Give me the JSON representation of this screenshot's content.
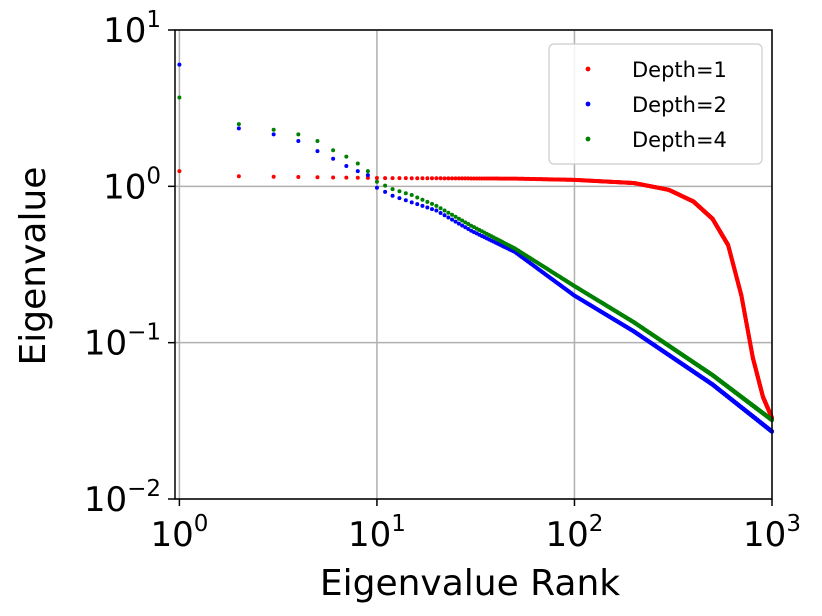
{
  "chart_data": {
    "type": "scatter",
    "title": "",
    "xlabel": "Eigenvalue Rank",
    "ylabel": "Eigenvalue",
    "xscale": "log",
    "yscale": "log",
    "xlim": [
      0.95,
      1000
    ],
    "ylim": [
      0.01,
      10
    ],
    "grid": true,
    "legend_position": "top-right",
    "x_ticks": [
      {
        "base": "10",
        "exp": "0",
        "value": 1
      },
      {
        "base": "10",
        "exp": "1",
        "value": 10
      },
      {
        "base": "10",
        "exp": "2",
        "value": 100
      },
      {
        "base": "10",
        "exp": "3",
        "value": 1000
      }
    ],
    "y_ticks": [
      {
        "base": "10",
        "exp": "−2",
        "value": 0.01
      },
      {
        "base": "10",
        "exp": "−1",
        "value": 0.1
      },
      {
        "base": "10",
        "exp": "0",
        "value": 1
      },
      {
        "base": "10",
        "exp": "1",
        "value": 10
      }
    ],
    "rank_max": 1000,
    "series": [
      {
        "name": "Depth=1",
        "color": "#ff0000",
        "anchors": [
          [
            1,
            1.25
          ],
          [
            2,
            1.16
          ],
          [
            10,
            1.13
          ],
          [
            50,
            1.12
          ],
          [
            100,
            1.1
          ],
          [
            200,
            1.05
          ],
          [
            300,
            0.95
          ],
          [
            400,
            0.8
          ],
          [
            500,
            0.62
          ],
          [
            600,
            0.42
          ],
          [
            700,
            0.2
          ],
          [
            800,
            0.08
          ],
          [
            900,
            0.045
          ],
          [
            1000,
            0.033
          ]
        ]
      },
      {
        "name": "Depth=2",
        "color": "#0000ff",
        "anchors": [
          [
            1,
            6.0
          ],
          [
            2,
            2.35
          ],
          [
            3,
            2.15
          ],
          [
            4,
            1.95
          ],
          [
            5,
            1.68
          ],
          [
            6,
            1.5
          ],
          [
            7,
            1.35
          ],
          [
            8,
            1.25
          ],
          [
            9,
            1.18
          ],
          [
            10,
            0.98
          ],
          [
            12,
            0.87
          ],
          [
            15,
            0.79
          ],
          [
            20,
            0.7
          ],
          [
            30,
            0.52
          ],
          [
            50,
            0.38
          ],
          [
            100,
            0.2
          ],
          [
            200,
            0.118
          ],
          [
            500,
            0.054
          ],
          [
            1000,
            0.027
          ]
        ]
      },
      {
        "name": "Depth=4",
        "color": "#008000",
        "anchors": [
          [
            1,
            3.7
          ],
          [
            2,
            2.5
          ],
          [
            3,
            2.3
          ],
          [
            4,
            2.15
          ],
          [
            5,
            1.95
          ],
          [
            6,
            1.7
          ],
          [
            7,
            1.55
          ],
          [
            8,
            1.4
          ],
          [
            9,
            1.25
          ],
          [
            10,
            1.07
          ],
          [
            12,
            0.96
          ],
          [
            15,
            0.88
          ],
          [
            20,
            0.75
          ],
          [
            30,
            0.56
          ],
          [
            50,
            0.4
          ],
          [
            100,
            0.23
          ],
          [
            200,
            0.135
          ],
          [
            500,
            0.062
          ],
          [
            1000,
            0.032
          ]
        ]
      }
    ]
  }
}
